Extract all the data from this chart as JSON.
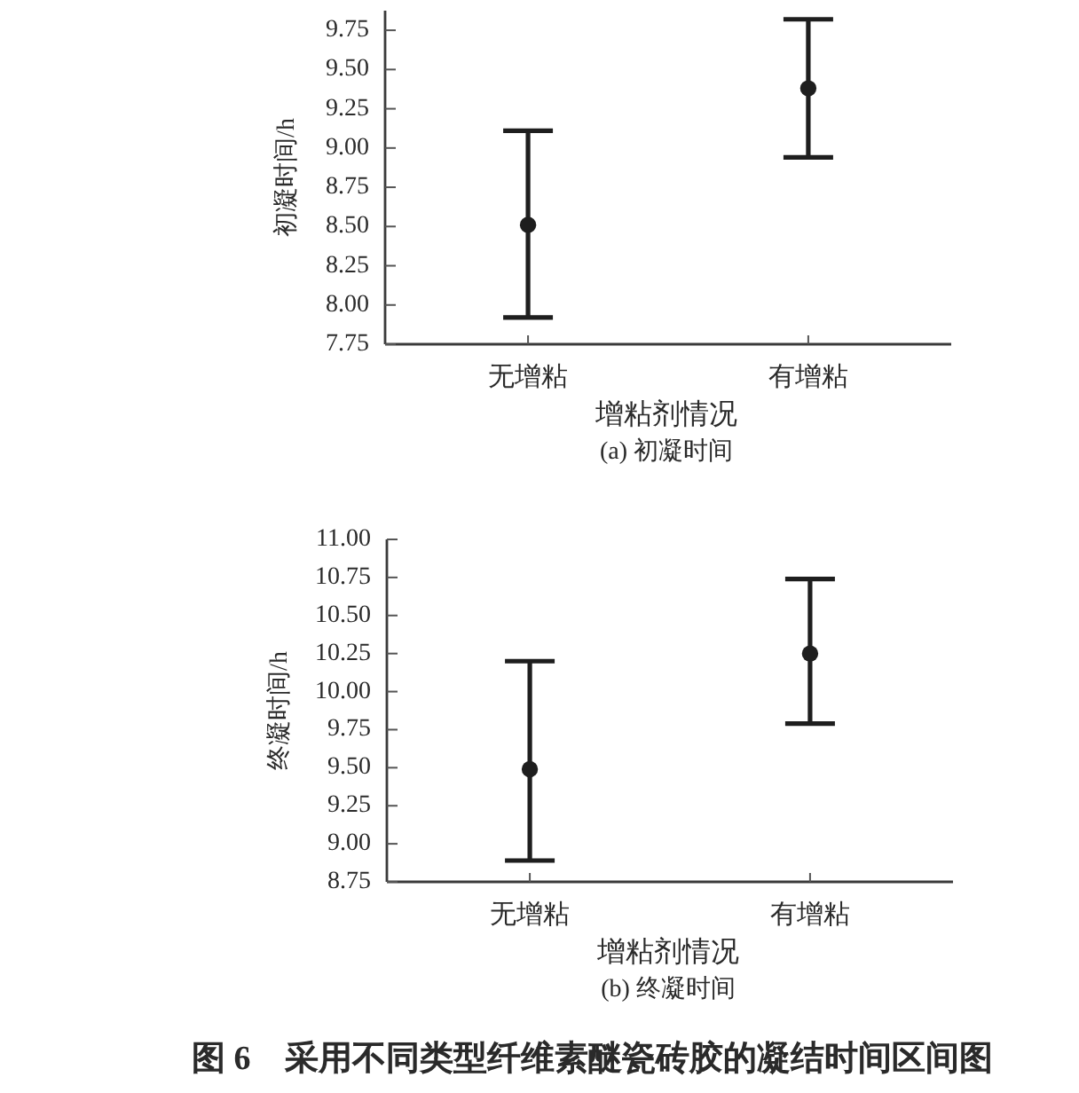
{
  "chart_data": [
    {
      "type": "scatter",
      "title": "(a) 初凝时间",
      "xlabel": "增粘剂情况",
      "ylabel": "初凝时间/h",
      "categories": [
        "无增粘",
        "有增粘"
      ],
      "values": [
        8.51,
        9.38
      ],
      "errors": [
        [
          7.92,
          9.11
        ],
        [
          8.94,
          9.82
        ]
      ],
      "color": "#1e1e1e",
      "marker": "circle",
      "ylim": [
        7.75,
        9.875
      ],
      "yticks": [
        7.75,
        {
          "value": 8,
          "label": "8.00"
        },
        8.25,
        {
          "value": 8.5,
          "label": "8.50"
        },
        8.75,
        {
          "value": 9,
          "label": "9.00"
        },
        9.25,
        {
          "value": 9.5,
          "label": "9.50"
        },
        9.75
      ]
    },
    {
      "type": "scatter",
      "title": "(b) 终凝时间",
      "xlabel": "增粘剂情况",
      "ylabel": "终凝时间/h",
      "categories": [
        "无增粘",
        "有增粘"
      ],
      "values": [
        9.49,
        10.25
      ],
      "errors": [
        [
          8.89,
          10.2
        ],
        [
          9.79,
          10.74
        ]
      ],
      "color": "#1e1e1e",
      "marker": "circle",
      "ylim": [
        8.75,
        11
      ],
      "yticks": [
        8.75,
        {
          "value": 9,
          "label": "9.00"
        },
        9.25,
        {
          "value": 9.5,
          "label": "9.50"
        },
        9.75,
        {
          "value": 10,
          "label": "10.00"
        },
        10.25,
        {
          "value": 10.5,
          "label": "10.50"
        },
        10.75,
        {
          "value": 11,
          "label": "11.00"
        }
      ],
      "annotations": [
        "图 6　采用不同类型纤维素醚瓷砖胶的凝结时间区间图"
      ]
    }
  ]
}
